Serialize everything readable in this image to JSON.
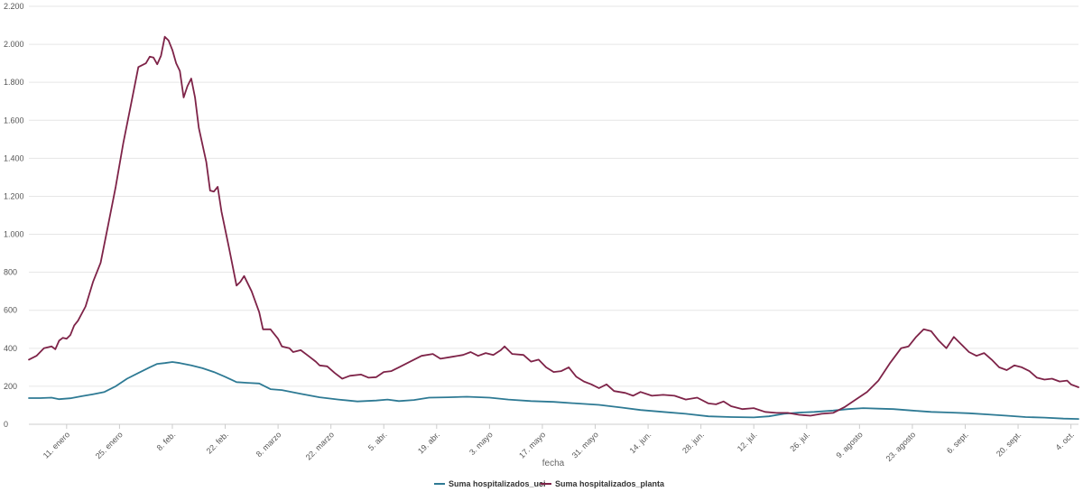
{
  "chart_data": {
    "type": "line",
    "title": "",
    "xlabel": "fecha",
    "ylabel": "",
    "ylim": [
      0,
      2200
    ],
    "y_ticks": [
      0,
      200,
      400,
      600,
      800,
      1000,
      1200,
      1400,
      1600,
      1800,
      2000,
      2200
    ],
    "y_tick_labels": [
      "0",
      "200",
      "400",
      "600",
      "800",
      "1.000",
      "1.200",
      "1.400",
      "1.600",
      "1.800",
      "2.000",
      "2.200"
    ],
    "x_start": "2021-01-01",
    "x_end": "2021-10-06",
    "x_tick_dates": [
      "2021-01-11",
      "2021-01-25",
      "2021-02-08",
      "2021-02-22",
      "2021-03-08",
      "2021-03-22",
      "2021-04-05",
      "2021-04-19",
      "2021-05-03",
      "2021-05-17",
      "2021-05-31",
      "2021-06-14",
      "2021-06-28",
      "2021-07-12",
      "2021-07-26",
      "2021-08-09",
      "2021-08-23",
      "2021-09-06",
      "2021-09-20",
      "2021-10-04"
    ],
    "x_tick_labels": [
      "11. enero",
      "25. enero",
      "8. feb.",
      "22. feb.",
      "8. marzo",
      "22. marzo",
      "5. abr.",
      "19. abr.",
      "3. mayo",
      "17. mayo",
      "31. mayo",
      "14. jun.",
      "28. jun.",
      "12. jul.",
      "26. jul.",
      "9. agosto",
      "23. agosto",
      "6. sept.",
      "20. sept.",
      "4. oct."
    ],
    "grid": true,
    "legend_position": "bottom-center",
    "series": [
      {
        "name": "Suma hospitalizados_uci",
        "color": "#2e7a94",
        "points": [
          [
            "2021-01-01",
            138
          ],
          [
            "2021-01-04",
            138
          ],
          [
            "2021-01-07",
            140
          ],
          [
            "2021-01-09",
            132
          ],
          [
            "2021-01-12",
            137
          ],
          [
            "2021-01-15",
            148
          ],
          [
            "2021-01-18",
            158
          ],
          [
            "2021-01-21",
            170
          ],
          [
            "2021-01-24",
            200
          ],
          [
            "2021-01-27",
            240
          ],
          [
            "2021-01-30",
            270
          ],
          [
            "2021-02-02",
            300
          ],
          [
            "2021-02-04",
            318
          ],
          [
            "2021-02-06",
            322
          ],
          [
            "2021-02-08",
            328
          ],
          [
            "2021-02-10",
            322
          ],
          [
            "2021-02-13",
            310
          ],
          [
            "2021-02-16",
            295
          ],
          [
            "2021-02-19",
            275
          ],
          [
            "2021-02-22",
            250
          ],
          [
            "2021-02-25",
            222
          ],
          [
            "2021-02-28",
            218
          ],
          [
            "2021-03-03",
            215
          ],
          [
            "2021-03-06",
            185
          ],
          [
            "2021-03-09",
            180
          ],
          [
            "2021-03-14",
            160
          ],
          [
            "2021-03-19",
            142
          ],
          [
            "2021-03-24",
            130
          ],
          [
            "2021-03-29",
            120
          ],
          [
            "2021-04-03",
            125
          ],
          [
            "2021-04-06",
            130
          ],
          [
            "2021-04-09",
            122
          ],
          [
            "2021-04-13",
            128
          ],
          [
            "2021-04-17",
            140
          ],
          [
            "2021-04-22",
            142
          ],
          [
            "2021-04-27",
            145
          ],
          [
            "2021-05-03",
            140
          ],
          [
            "2021-05-08",
            130
          ],
          [
            "2021-05-14",
            122
          ],
          [
            "2021-05-20",
            118
          ],
          [
            "2021-05-26",
            110
          ],
          [
            "2021-06-01",
            102
          ],
          [
            "2021-06-07",
            88
          ],
          [
            "2021-06-12",
            75
          ],
          [
            "2021-06-18",
            65
          ],
          [
            "2021-06-24",
            55
          ],
          [
            "2021-06-30",
            42
          ],
          [
            "2021-07-06",
            38
          ],
          [
            "2021-07-12",
            36
          ],
          [
            "2021-07-16",
            42
          ],
          [
            "2021-07-20",
            55
          ],
          [
            "2021-07-24",
            62
          ],
          [
            "2021-07-28",
            65
          ],
          [
            "2021-08-02",
            72
          ],
          [
            "2021-08-06",
            80
          ],
          [
            "2021-08-10",
            85
          ],
          [
            "2021-08-14",
            82
          ],
          [
            "2021-08-18",
            80
          ],
          [
            "2021-08-23",
            72
          ],
          [
            "2021-08-28",
            65
          ],
          [
            "2021-09-02",
            62
          ],
          [
            "2021-09-07",
            58
          ],
          [
            "2021-09-12",
            52
          ],
          [
            "2021-09-17",
            45
          ],
          [
            "2021-09-22",
            38
          ],
          [
            "2021-09-27",
            35
          ],
          [
            "2021-10-02",
            30
          ],
          [
            "2021-10-06",
            28
          ]
        ]
      },
      {
        "name": "Suma hospitalizados_planta",
        "color": "#7e2348",
        "points": [
          [
            "2021-01-01",
            340
          ],
          [
            "2021-01-03",
            360
          ],
          [
            "2021-01-05",
            400
          ],
          [
            "2021-01-07",
            410
          ],
          [
            "2021-01-08",
            395
          ],
          [
            "2021-01-09",
            440
          ],
          [
            "2021-01-10",
            455
          ],
          [
            "2021-01-11",
            450
          ],
          [
            "2021-01-12",
            470
          ],
          [
            "2021-01-13",
            520
          ],
          [
            "2021-01-14",
            545
          ],
          [
            "2021-01-16",
            620
          ],
          [
            "2021-01-18",
            750
          ],
          [
            "2021-01-20",
            850
          ],
          [
            "2021-01-22",
            1050
          ],
          [
            "2021-01-24",
            1250
          ],
          [
            "2021-01-26",
            1480
          ],
          [
            "2021-01-28",
            1680
          ],
          [
            "2021-01-30",
            1880
          ],
          [
            "2021-02-01",
            1900
          ],
          [
            "2021-02-02",
            1935
          ],
          [
            "2021-02-03",
            1930
          ],
          [
            "2021-02-04",
            1895
          ],
          [
            "2021-02-05",
            1940
          ],
          [
            "2021-02-06",
            2040
          ],
          [
            "2021-02-07",
            2020
          ],
          [
            "2021-02-08",
            1970
          ],
          [
            "2021-02-09",
            1900
          ],
          [
            "2021-02-10",
            1860
          ],
          [
            "2021-02-11",
            1720
          ],
          [
            "2021-02-12",
            1780
          ],
          [
            "2021-02-13",
            1820
          ],
          [
            "2021-02-14",
            1720
          ],
          [
            "2021-02-15",
            1560
          ],
          [
            "2021-02-17",
            1380
          ],
          [
            "2021-02-18",
            1230
          ],
          [
            "2021-02-19",
            1225
          ],
          [
            "2021-02-20",
            1250
          ],
          [
            "2021-02-21",
            1120
          ],
          [
            "2021-02-23",
            930
          ],
          [
            "2021-02-25",
            730
          ],
          [
            "2021-02-26",
            750
          ],
          [
            "2021-02-27",
            780
          ],
          [
            "2021-03-01",
            700
          ],
          [
            "2021-03-03",
            590
          ],
          [
            "2021-03-04",
            500
          ],
          [
            "2021-03-06",
            500
          ],
          [
            "2021-03-08",
            450
          ],
          [
            "2021-03-09",
            410
          ],
          [
            "2021-03-11",
            400
          ],
          [
            "2021-03-12",
            380
          ],
          [
            "2021-03-14",
            390
          ],
          [
            "2021-03-16",
            360
          ],
          [
            "2021-03-18",
            330
          ],
          [
            "2021-03-19",
            310
          ],
          [
            "2021-03-21",
            305
          ],
          [
            "2021-03-23",
            270
          ],
          [
            "2021-03-25",
            240
          ],
          [
            "2021-03-27",
            255
          ],
          [
            "2021-03-30",
            262
          ],
          [
            "2021-04-01",
            245
          ],
          [
            "2021-04-03",
            248
          ],
          [
            "2021-04-05",
            275
          ],
          [
            "2021-04-07",
            280
          ],
          [
            "2021-04-09",
            300
          ],
          [
            "2021-04-12",
            330
          ],
          [
            "2021-04-15",
            360
          ],
          [
            "2021-04-18",
            370
          ],
          [
            "2021-04-20",
            345
          ],
          [
            "2021-04-23",
            355
          ],
          [
            "2021-04-26",
            365
          ],
          [
            "2021-04-28",
            380
          ],
          [
            "2021-04-30",
            360
          ],
          [
            "2021-05-02",
            375
          ],
          [
            "2021-05-04",
            365
          ],
          [
            "2021-05-06",
            390
          ],
          [
            "2021-05-07",
            410
          ],
          [
            "2021-05-09",
            370
          ],
          [
            "2021-05-12",
            365
          ],
          [
            "2021-05-14",
            330
          ],
          [
            "2021-05-16",
            340
          ],
          [
            "2021-05-18",
            300
          ],
          [
            "2021-05-20",
            275
          ],
          [
            "2021-05-22",
            280
          ],
          [
            "2021-05-24",
            300
          ],
          [
            "2021-05-26",
            250
          ],
          [
            "2021-05-28",
            225
          ],
          [
            "2021-05-30",
            210
          ],
          [
            "2021-06-01",
            190
          ],
          [
            "2021-06-03",
            210
          ],
          [
            "2021-06-05",
            175
          ],
          [
            "2021-06-08",
            165
          ],
          [
            "2021-06-10",
            150
          ],
          [
            "2021-06-12",
            170
          ],
          [
            "2021-06-15",
            150
          ],
          [
            "2021-06-18",
            155
          ],
          [
            "2021-06-21",
            150
          ],
          [
            "2021-06-24",
            130
          ],
          [
            "2021-06-27",
            140
          ],
          [
            "2021-06-30",
            110
          ],
          [
            "2021-07-02",
            105
          ],
          [
            "2021-07-04",
            120
          ],
          [
            "2021-07-06",
            95
          ],
          [
            "2021-07-09",
            80
          ],
          [
            "2021-07-12",
            85
          ],
          [
            "2021-07-15",
            65
          ],
          [
            "2021-07-18",
            60
          ],
          [
            "2021-07-21",
            60
          ],
          [
            "2021-07-24",
            50
          ],
          [
            "2021-07-27",
            45
          ],
          [
            "2021-07-30",
            55
          ],
          [
            "2021-08-02",
            60
          ],
          [
            "2021-08-05",
            90
          ],
          [
            "2021-08-08",
            130
          ],
          [
            "2021-08-11",
            170
          ],
          [
            "2021-08-14",
            230
          ],
          [
            "2021-08-17",
            320
          ],
          [
            "2021-08-20",
            400
          ],
          [
            "2021-08-22",
            410
          ],
          [
            "2021-08-24",
            460
          ],
          [
            "2021-08-26",
            500
          ],
          [
            "2021-08-28",
            490
          ],
          [
            "2021-08-30",
            440
          ],
          [
            "2021-09-01",
            400
          ],
          [
            "2021-09-03",
            460
          ],
          [
            "2021-09-05",
            420
          ],
          [
            "2021-09-07",
            380
          ],
          [
            "2021-09-09",
            360
          ],
          [
            "2021-09-11",
            375
          ],
          [
            "2021-09-13",
            340
          ],
          [
            "2021-09-15",
            300
          ],
          [
            "2021-09-17",
            285
          ],
          [
            "2021-09-19",
            310
          ],
          [
            "2021-09-21",
            300
          ],
          [
            "2021-09-23",
            280
          ],
          [
            "2021-09-25",
            245
          ],
          [
            "2021-09-27",
            235
          ],
          [
            "2021-09-29",
            240
          ],
          [
            "2021-10-01",
            225
          ],
          [
            "2021-10-03",
            230
          ],
          [
            "2021-10-04",
            210
          ],
          [
            "2021-10-06",
            195
          ]
        ]
      }
    ]
  }
}
